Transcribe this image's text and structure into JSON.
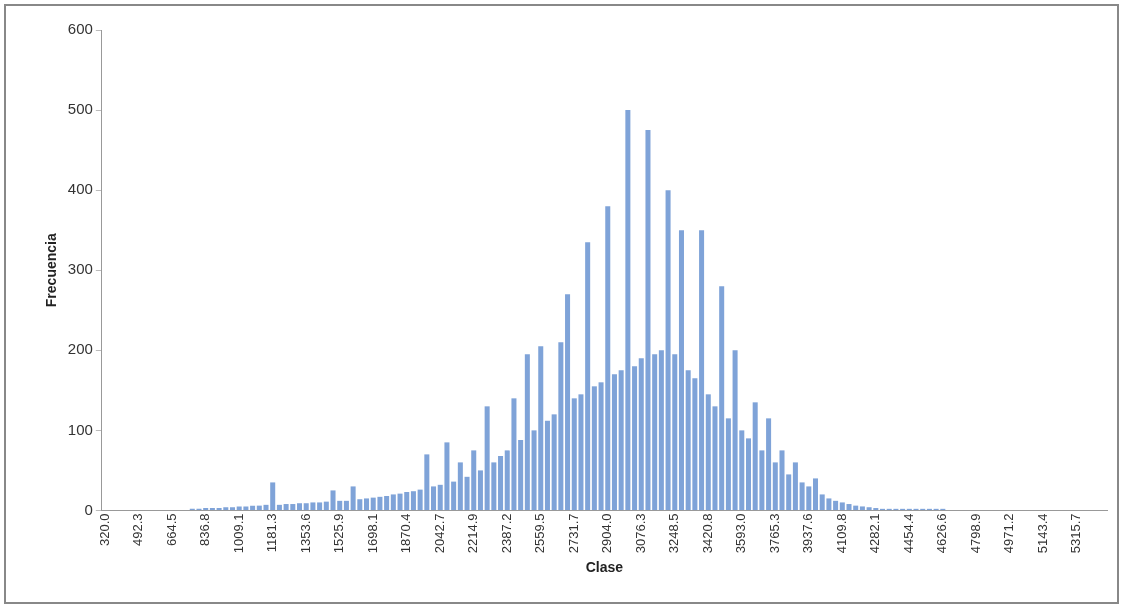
{
  "chart_data": {
    "type": "bar",
    "xlabel": "Clase",
    "ylabel": "Frecuencia",
    "categories": [
      "320.0",
      null,
      null,
      null,
      null,
      "492.3",
      null,
      null,
      null,
      null,
      "664.5",
      null,
      null,
      null,
      null,
      "836.8",
      null,
      null,
      null,
      null,
      "1009.1",
      null,
      null,
      null,
      null,
      "1181.3",
      null,
      null,
      null,
      null,
      "1353.6",
      null,
      null,
      null,
      null,
      "1525.9",
      null,
      null,
      null,
      null,
      "1698.1",
      null,
      null,
      null,
      null,
      "1870.4",
      null,
      null,
      null,
      null,
      "2042.7",
      null,
      null,
      null,
      null,
      "2214.9",
      null,
      null,
      null,
      null,
      "2387.2",
      null,
      null,
      null,
      null,
      "2559.5",
      null,
      null,
      null,
      null,
      "2731.7",
      null,
      null,
      null,
      null,
      "2904.0",
      null,
      null,
      null,
      null,
      "3076.3",
      null,
      null,
      null,
      null,
      "3248.5",
      null,
      null,
      null,
      null,
      "3420.8",
      null,
      null,
      null,
      null,
      "3593.0",
      null,
      null,
      null,
      null,
      "3765.3",
      null,
      null,
      null,
      null,
      "3937.6",
      null,
      null,
      null,
      null,
      "4109.8",
      null,
      null,
      null,
      null,
      "4282.1",
      null,
      null,
      null,
      null,
      "4454.4",
      null,
      null,
      null,
      null,
      "4626.6",
      null,
      null,
      null,
      null,
      "4798.9",
      null,
      null,
      null,
      null,
      "4971.2",
      null,
      null,
      null,
      null,
      "5143.4",
      null,
      null,
      null,
      null,
      "5315.7",
      null,
      null,
      null,
      null
    ],
    "values": [
      0,
      0,
      0,
      0,
      0,
      0,
      0,
      0,
      0,
      0,
      0,
      0,
      0,
      2,
      2,
      3,
      3,
      3,
      4,
      4,
      5,
      5,
      6,
      6,
      7,
      35,
      7,
      8,
      8,
      9,
      9,
      10,
      10,
      11,
      25,
      12,
      12,
      30,
      14,
      15,
      16,
      17,
      18,
      20,
      21,
      23,
      24,
      26,
      70,
      30,
      32,
      85,
      36,
      60,
      42,
      75,
      50,
      130,
      60,
      68,
      75,
      140,
      88,
      195,
      100,
      205,
      112,
      120,
      210,
      270,
      140,
      145,
      335,
      155,
      160,
      380,
      170,
      175,
      500,
      180,
      190,
      475,
      195,
      200,
      400,
      195,
      350,
      175,
      165,
      350,
      145,
      130,
      280,
      115,
      200,
      100,
      90,
      135,
      75,
      115,
      60,
      75,
      45,
      60,
      35,
      30,
      40,
      20,
      15,
      12,
      10,
      8,
      6,
      5,
      4,
      3,
      2,
      2,
      2,
      2,
      2,
      2,
      2,
      2,
      2,
      2,
      0,
      0,
      0,
      0,
      0,
      0,
      0,
      0,
      0,
      0,
      0,
      0,
      0,
      0,
      0,
      0,
      0,
      0,
      0,
      0,
      0,
      0,
      0,
      0
    ],
    "color": "#7fa3d8",
    "ylim": [
      0,
      600
    ],
    "yticks": [
      0,
      100,
      200,
      300,
      400,
      500,
      600
    ],
    "grid": false,
    "legend": false
  }
}
